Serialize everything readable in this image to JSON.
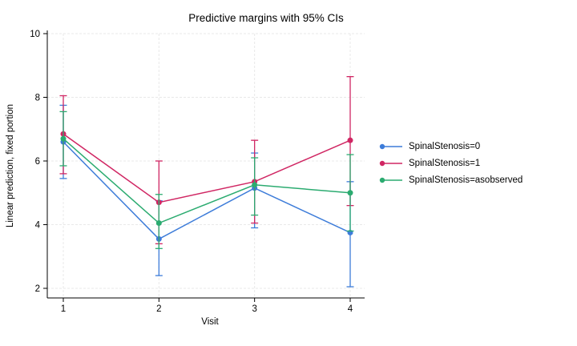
{
  "title": "Predictive margins with 95% CIs",
  "chart_data": {
    "type": "line",
    "title": "Predictive margins with 95% CIs",
    "xlabel": "Visit",
    "ylabel": "Linear prediction, fixed portion",
    "x": [
      1,
      2,
      3,
      4
    ],
    "xticks": [
      "1",
      "2",
      "3",
      "4"
    ],
    "yticks": [
      "2",
      "4",
      "6",
      "8",
      "10"
    ],
    "xlim": [
      1,
      4
    ],
    "ylim": [
      2,
      10
    ],
    "grid": "both-dashed",
    "legend_position": "right-outside",
    "error_bars": "95% confidence intervals with caps",
    "series": [
      {
        "name": "SpinalStenosis=0",
        "color": "#3d7cd9",
        "values": [
          6.6,
          3.55,
          5.15,
          3.75
        ],
        "ci_low": [
          5.45,
          2.4,
          3.9,
          2.05
        ],
        "ci_high": [
          7.75,
          4.75,
          6.25,
          5.35
        ]
      },
      {
        "name": "SpinalStenosis=1",
        "color": "#d02663",
        "values": [
          6.85,
          4.7,
          5.35,
          6.65
        ],
        "ci_low": [
          5.6,
          3.4,
          4.05,
          4.6
        ],
        "ci_high": [
          8.05,
          6.0,
          6.65,
          8.65
        ]
      },
      {
        "name": "SpinalStenosis=asobserved",
        "color": "#2bab70",
        "values": [
          6.7,
          4.05,
          5.25,
          5.0
        ],
        "ci_low": [
          5.85,
          3.25,
          4.3,
          3.8
        ],
        "ci_high": [
          7.55,
          4.95,
          6.1,
          6.2
        ]
      }
    ]
  },
  "colors": {
    "grid": "#e8e8e8",
    "axis": "#000000",
    "text": "#000000",
    "background": "#ffffff"
  }
}
